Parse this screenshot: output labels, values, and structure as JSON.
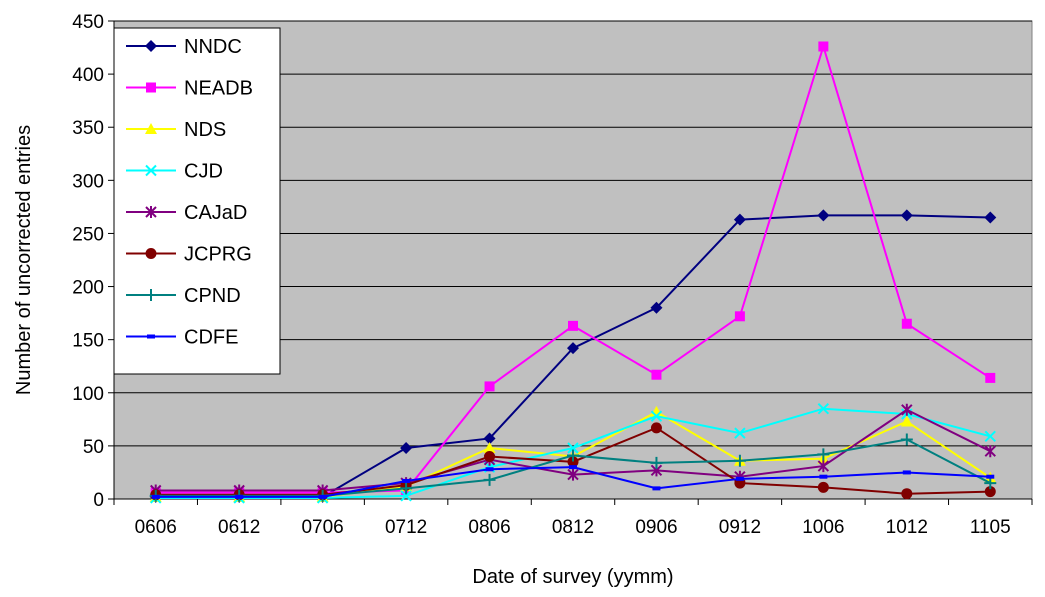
{
  "chart_data": {
    "type": "line",
    "xlabel": "Date of survey (yymm)",
    "ylabel": "Number of uncorrected entries",
    "ylim": [
      0,
      450
    ],
    "yticks": [
      0,
      50,
      100,
      150,
      200,
      250,
      300,
      350,
      400,
      450
    ],
    "grid": "horizontal",
    "background": "#c0c0c0",
    "legend_position": "top-left",
    "categories": [
      "0606",
      "0612",
      "0706",
      "0712",
      "0806",
      "0812",
      "0906",
      "0912",
      "1006",
      "1012",
      "1105"
    ],
    "series": [
      {
        "name": "NNDC",
        "color": "#000080",
        "marker": "diamond",
        "values": [
          2,
          2,
          2,
          48,
          57,
          142,
          180,
          263,
          267,
          267,
          265
        ]
      },
      {
        "name": "NEADB",
        "color": "#ff00ff",
        "marker": "square",
        "values": [
          6,
          6,
          6,
          8,
          106,
          163,
          117,
          172,
          426,
          165,
          114
        ]
      },
      {
        "name": "NDS",
        "color": "#ffff00",
        "marker": "triangle",
        "values": [
          2,
          2,
          2,
          12,
          48,
          40,
          82,
          36,
          38,
          73,
          20
        ]
      },
      {
        "name": "CJD",
        "color": "#00ffff",
        "marker": "x",
        "values": [
          1,
          1,
          1,
          3,
          30,
          48,
          78,
          62,
          85,
          80,
          59
        ]
      },
      {
        "name": "CAJaD",
        "color": "#800080",
        "marker": "star",
        "values": [
          8,
          8,
          8,
          15,
          37,
          23,
          27,
          21,
          31,
          84,
          45
        ]
      },
      {
        "name": "JCPRG",
        "color": "#800000",
        "marker": "circle",
        "values": [
          4,
          4,
          4,
          13,
          40,
          35,
          67,
          15,
          11,
          5,
          7
        ]
      },
      {
        "name": "CPND",
        "color": "#008080",
        "marker": "plus",
        "values": [
          3,
          3,
          3,
          10,
          18,
          41,
          34,
          36,
          42,
          56,
          15
        ]
      },
      {
        "name": "CDFE",
        "color": "#0000ff",
        "marker": "dash",
        "values": [
          2,
          2,
          2,
          17,
          28,
          30,
          10,
          19,
          21,
          25,
          21
        ]
      }
    ]
  }
}
